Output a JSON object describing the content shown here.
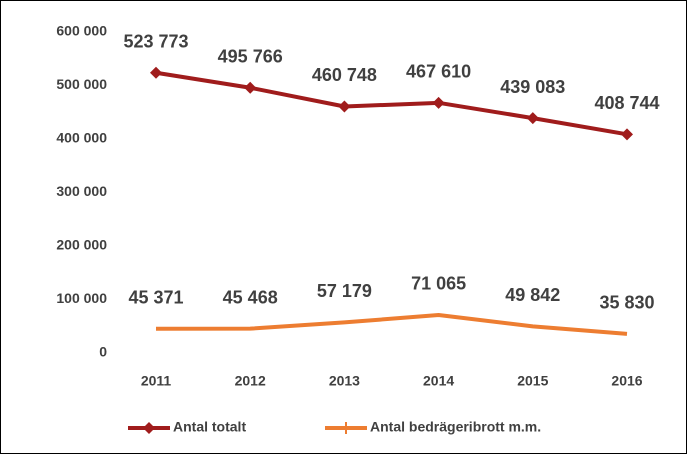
{
  "chart_data": {
    "type": "line",
    "categories": [
      "2011",
      "2012",
      "2013",
      "2014",
      "2015",
      "2016"
    ],
    "series": [
      {
        "name": "Antal totalt",
        "color": "#a01c1c",
        "marker": "diamond",
        "values": [
          523773,
          495766,
          460748,
          467610,
          439083,
          408744
        ],
        "value_labels": [
          "523 773",
          "495 766",
          "460 748",
          "467 610",
          "439 083",
          "408 744"
        ]
      },
      {
        "name": "Antal bedrägeribrott m.m.",
        "color": "#ed7d31",
        "marker": "plus",
        "values": [
          45371,
          45468,
          57179,
          71065,
          49842,
          35830
        ],
        "value_labels": [
          "45 371",
          "45 468",
          "57 179",
          "71 065",
          "49 842",
          "35 830"
        ]
      }
    ],
    "ylim": [
      0,
      600000
    ],
    "yticks": [
      0,
      {
        "value": 100000,
        "label": "100 000"
      },
      {
        "value": 200000,
        "label": "200 000"
      },
      {
        "value": 300000,
        "label": "300 000"
      },
      {
        "value": 400000,
        "label": "400 000"
      },
      {
        "value": 500000,
        "label": "500 000"
      },
      {
        "value": 600000,
        "label": "600 000"
      }
    ],
    "grid": false,
    "legend": "bottom"
  }
}
